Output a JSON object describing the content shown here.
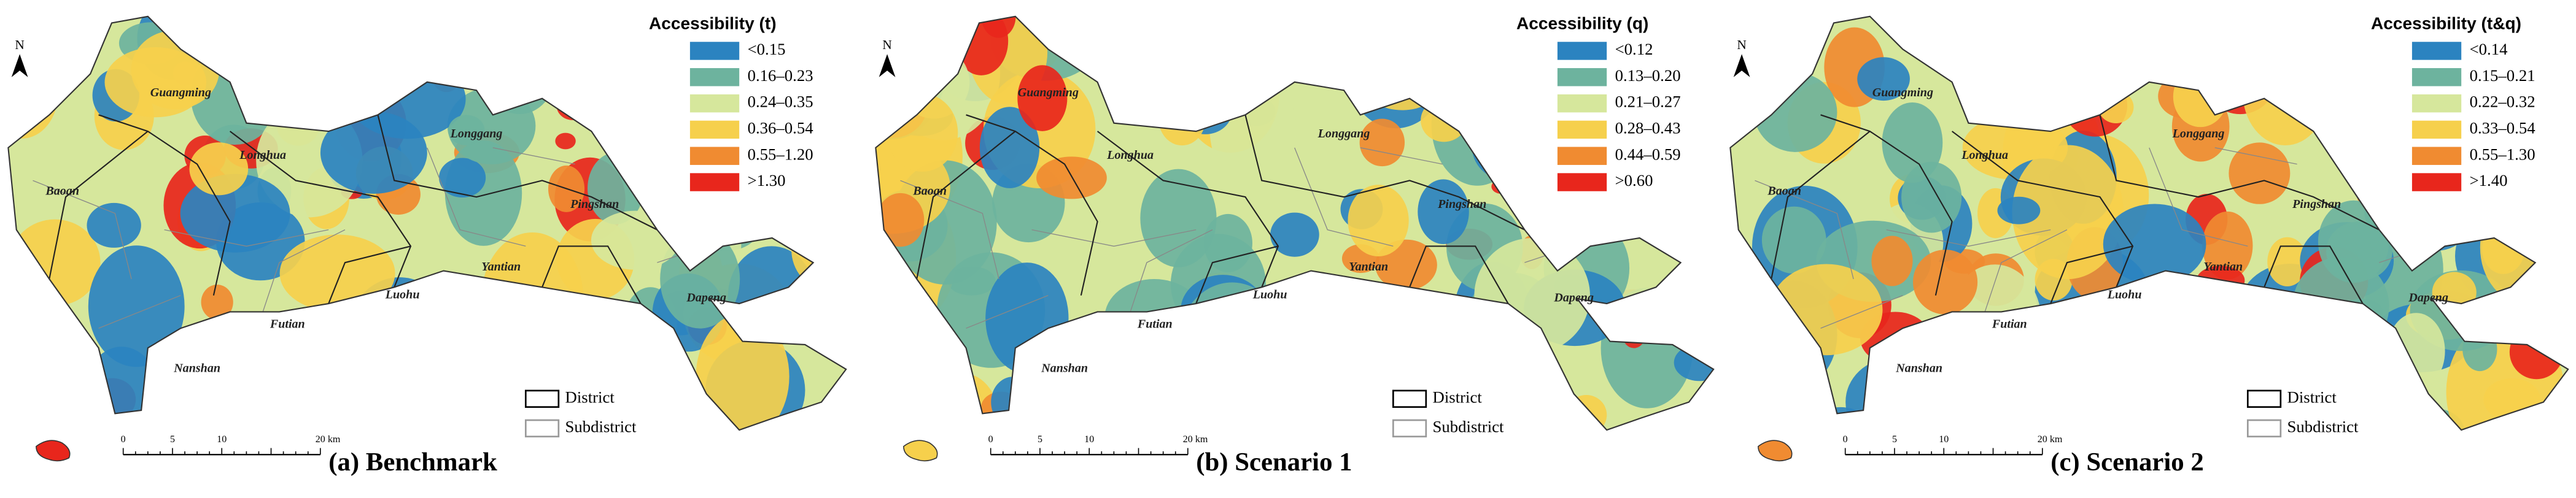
{
  "panels": [
    {
      "caption": "(a) Benchmark",
      "legend_title": "Accessibility (t)",
      "legend": [
        {
          "label": "<0.15",
          "color": "#2b83c0"
        },
        {
          "label": "0.16–0.23",
          "color": "#6db39e"
        },
        {
          "label": "0.24–0.35",
          "color": "#d6e79c"
        },
        {
          "label": "0.36–0.54",
          "color": "#f6d04c"
        },
        {
          "label": "0.55–1.20",
          "color": "#f08b31"
        },
        {
          "label": ">1.30",
          "color": "#e8261c"
        }
      ],
      "layers": [
        "District",
        "Subdistrict"
      ],
      "scale_labels": [
        "0",
        "5",
        "10",
        "20 km"
      ],
      "north": "N",
      "districts": [
        "Guangming",
        "Baoan",
        "Longhua",
        "Longgang",
        "Pingshan",
        "Dapeng",
        "Yantian",
        "Luohu",
        "Futian",
        "Nanshan"
      ]
    },
    {
      "caption": "(b) Scenario 1",
      "legend_title": "Accessibility (q)",
      "legend": [
        {
          "label": "<0.12",
          "color": "#2b83c0"
        },
        {
          "label": "0.13–0.20",
          "color": "#6db39e"
        },
        {
          "label": "0.21–0.27",
          "color": "#d6e79c"
        },
        {
          "label": "0.28–0.43",
          "color": "#f6d04c"
        },
        {
          "label": "0.44–0.59",
          "color": "#f08b31"
        },
        {
          "label": ">0.60",
          "color": "#e8261c"
        }
      ],
      "layers": [
        "District",
        "Subdistrict"
      ],
      "scale_labels": [
        "0",
        "5",
        "10",
        "20 km"
      ],
      "north": "N",
      "districts": [
        "Guangming",
        "Baoan",
        "Longhua",
        "Longgang",
        "Pingshan",
        "Dapeng",
        "Yantian",
        "Luohu",
        "Futian",
        "Nanshan"
      ]
    },
    {
      "caption": "(c) Scenario 2",
      "legend_title": "Accessibility (t&q)",
      "legend": [
        {
          "label": "<0.14",
          "color": "#2b83c0"
        },
        {
          "label": "0.15–0.21",
          "color": "#6db39e"
        },
        {
          "label": "0.22–0.32",
          "color": "#d6e79c"
        },
        {
          "label": "0.33–0.54",
          "color": "#f6d04c"
        },
        {
          "label": "0.55–1.30",
          "color": "#f08b31"
        },
        {
          "label": ">1.40",
          "color": "#e8261c"
        }
      ],
      "layers": [
        "District",
        "Subdistrict"
      ],
      "scale_labels": [
        "0",
        "5",
        "10",
        "20 km"
      ],
      "north": "N",
      "districts": [
        "Guangming",
        "Baoan",
        "Longhua",
        "Longgang",
        "Pingshan",
        "Dapeng",
        "Yantian",
        "Luohu",
        "Futian",
        "Nanshan"
      ]
    }
  ]
}
